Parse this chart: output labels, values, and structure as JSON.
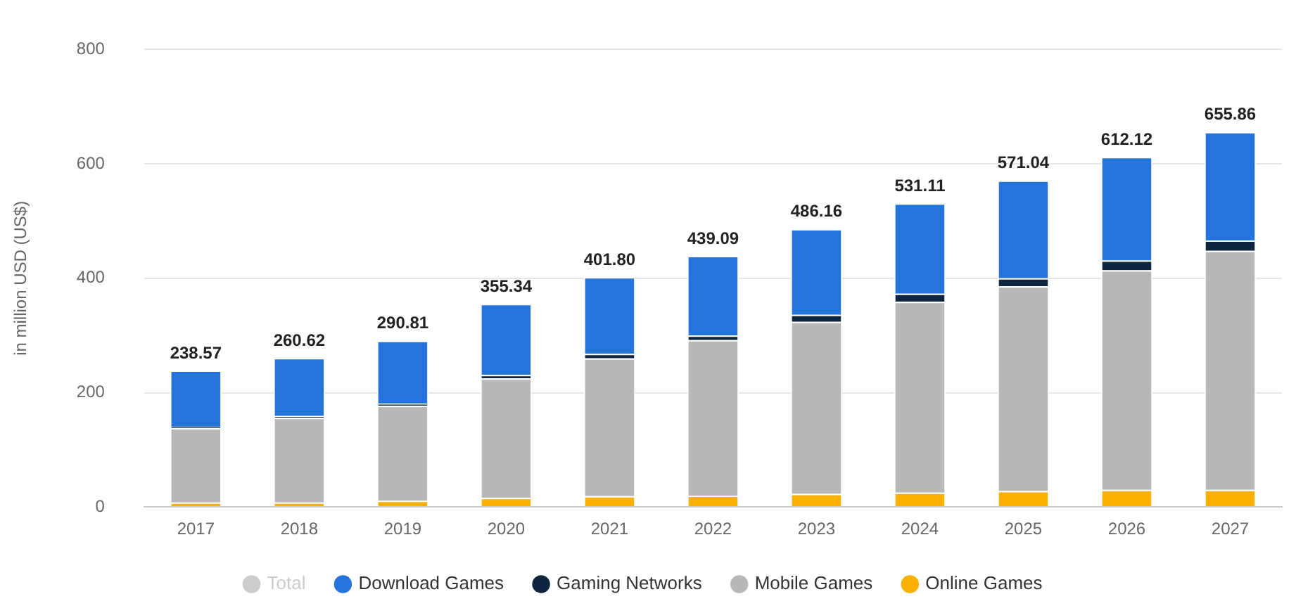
{
  "chart_data": {
    "type": "bar",
    "stacked": true,
    "ylabel": "in million USD (US$)",
    "categories": [
      "2017",
      "2018",
      "2019",
      "2020",
      "2021",
      "2022",
      "2023",
      "2024",
      "2025",
      "2026",
      "2027"
    ],
    "series": [
      {
        "name": "Online Games",
        "color": "#f9b000",
        "values": [
          8,
          8,
          11,
          16,
          19,
          20,
          23,
          25,
          28,
          30,
          30
        ]
      },
      {
        "name": "Mobile Games",
        "color": "#b8b8b8",
        "values": [
          130,
          148,
          166,
          209,
          241,
          272,
          301,
          334,
          358,
          384,
          418
        ]
      },
      {
        "name": "Gaming Networks",
        "color": "#0e2540",
        "values": [
          2,
          3,
          4,
          6,
          8,
          8,
          12,
          14,
          14,
          17,
          18
        ]
      },
      {
        "name": "Download Games",
        "color": "#2574dc",
        "values": [
          98.57,
          101.62,
          109.81,
          124.34,
          133.8,
          139.09,
          150.16,
          158.11,
          171.04,
          181.12,
          189.86
        ]
      },
      {
        "name": "Total",
        "color": "#cccccc",
        "values": [
          null,
          null,
          null,
          null,
          null,
          null,
          null,
          null,
          null,
          null,
          null
        ]
      }
    ],
    "totals": [
      "238.57",
      "260.62",
      "290.81",
      "355.34",
      "401.80",
      "439.09",
      "486.16",
      "531.11",
      "571.04",
      "612.12",
      "655.86"
    ],
    "ylim": [
      0,
      800
    ],
    "yticks": [
      0,
      200,
      400,
      600,
      800
    ],
    "grid": "y",
    "legend": "bottom"
  }
}
